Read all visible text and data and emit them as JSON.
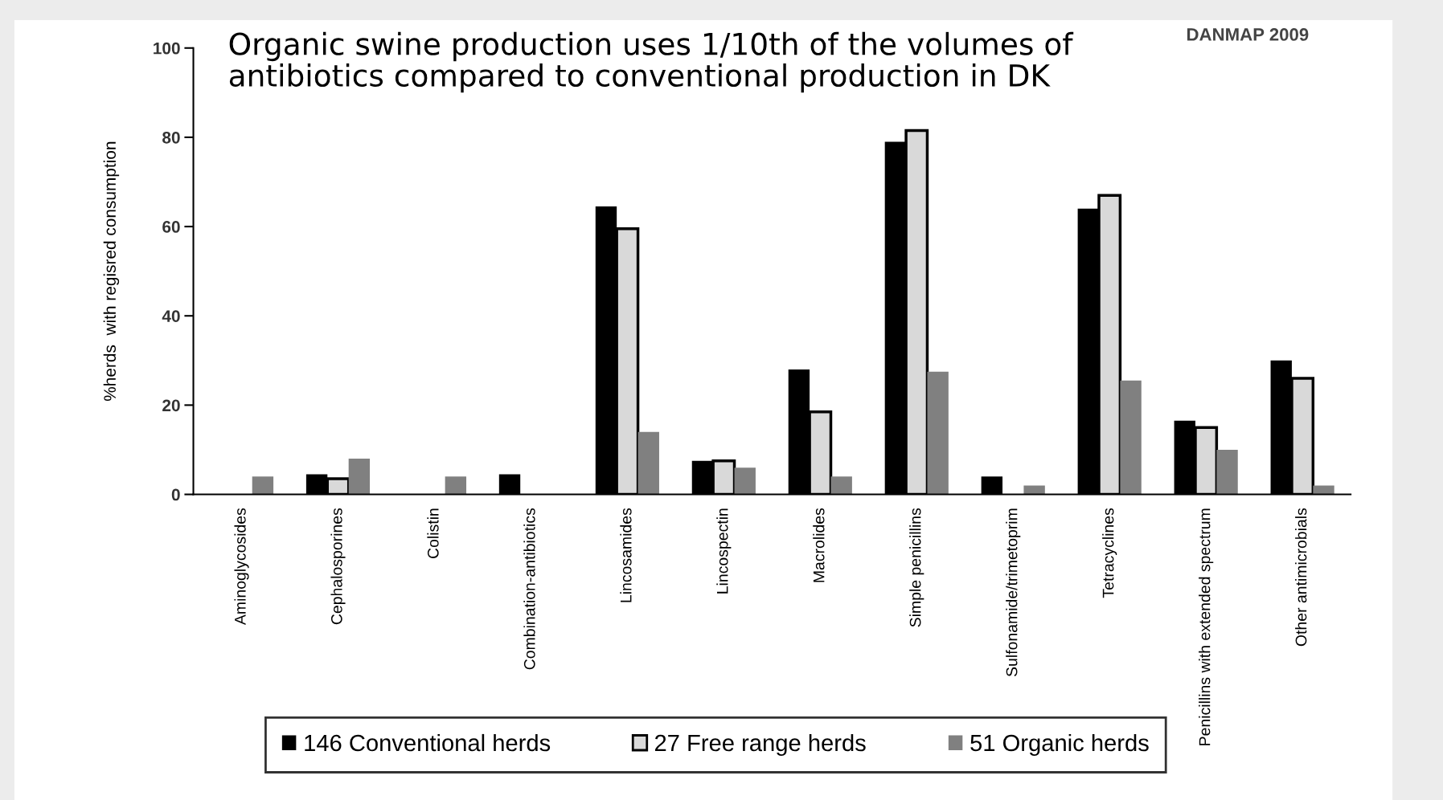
{
  "chart_data": {
    "type": "bar",
    "title": "Organic swine production uses 1/10th of the volumes of antibiotics compared to conventional production in DK",
    "ylabel": "%herds  with regisred consumption",
    "annotations": [
      "DANMAP 2009"
    ],
    "categories": [
      "Aminoglycosides",
      "Cephalosporines",
      "Colistin",
      "Combination-antibiotics",
      "Lincosamides",
      "Lincospectin",
      "Macrolides",
      "Simple penicillins",
      "Sulfonamide/trimetoprim",
      "Tetracyclines",
      "Penicillins with extended spectrum",
      "Other antimicrobials"
    ],
    "series": [
      {
        "name": "146 Conventional herds",
        "color": "#000000",
        "values": [
          0,
          4.5,
          0,
          4.5,
          64.5,
          7.5,
          28,
          79,
          4,
          64,
          16.5,
          30
        ]
      },
      {
        "name": "27 Free range herds",
        "color": "#d9d9d9",
        "values": [
          0,
          3.5,
          0,
          0,
          59.5,
          7.5,
          18.5,
          81.5,
          0,
          67,
          15,
          26
        ]
      },
      {
        "name": "51 Organic herds",
        "color": "#808080",
        "values": [
          4,
          8,
          4,
          0,
          14,
          6,
          4,
          27.5,
          2,
          25.5,
          10,
          2
        ]
      }
    ],
    "ylim": [
      0,
      100
    ],
    "yticks": [
      0,
      20,
      40,
      60,
      80,
      100
    ],
    "legend": "bottom"
  }
}
